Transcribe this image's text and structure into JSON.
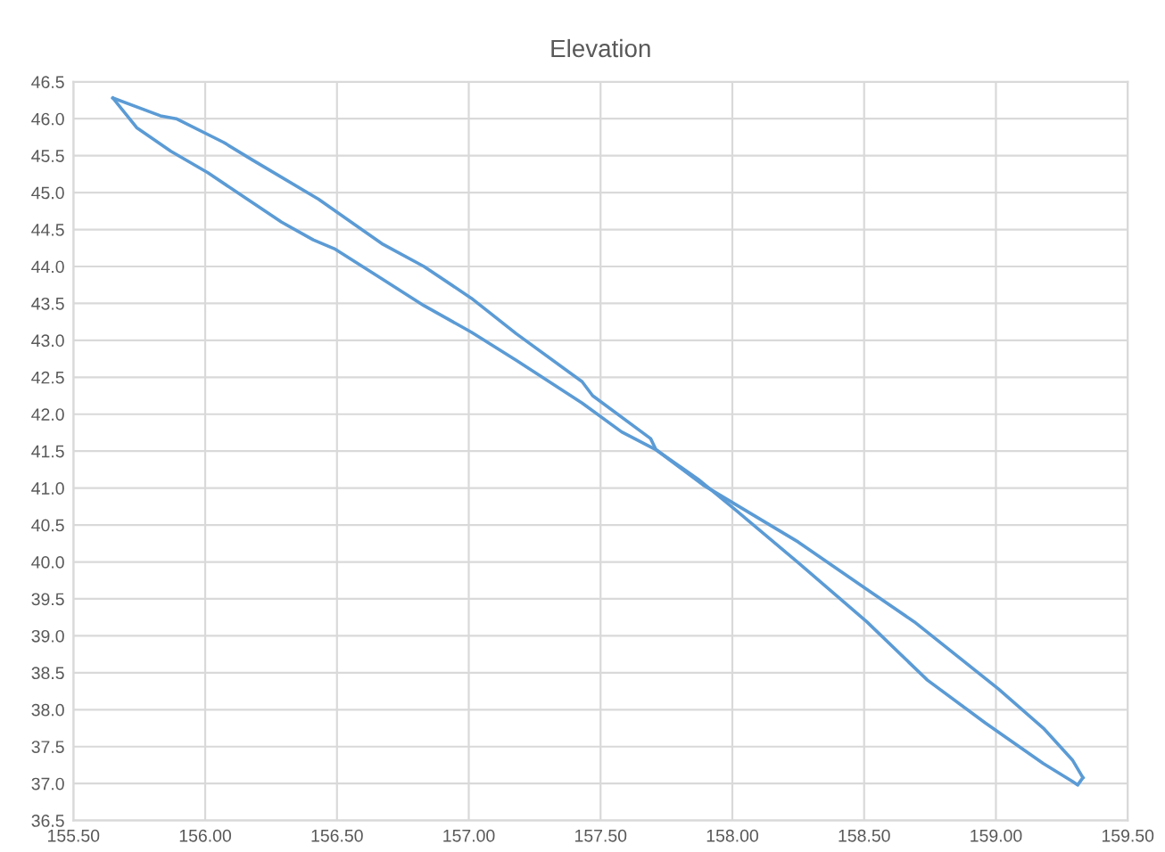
{
  "chart_data": {
    "type": "line",
    "title": "Elevation",
    "grid": true,
    "marker": "none",
    "line_style": "solid",
    "xlim": [
      155.5,
      159.5
    ],
    "ylim": [
      36.5,
      46.5
    ],
    "xticks": [
      {
        "value": 155.5,
        "label": "155.50"
      },
      {
        "value": 156.0,
        "label": "156.00"
      },
      {
        "value": 156.5,
        "label": "156.50"
      },
      {
        "value": 157.0,
        "label": "157.00"
      },
      {
        "value": 157.5,
        "label": "157.50"
      },
      {
        "value": 158.0,
        "label": "158.00"
      },
      {
        "value": 158.5,
        "label": "158.50"
      },
      {
        "value": 159.0,
        "label": "159.00"
      },
      {
        "value": 159.5,
        "label": "159.50"
      }
    ],
    "yticks": [
      {
        "value": 36.5,
        "label": "36.5"
      },
      {
        "value": 37.0,
        "label": "37.0"
      },
      {
        "value": 37.5,
        "label": "37.5"
      },
      {
        "value": 38.0,
        "label": "38.0"
      },
      {
        "value": 38.5,
        "label": "38.5"
      },
      {
        "value": 39.0,
        "label": "39.0"
      },
      {
        "value": 39.5,
        "label": "39.5"
      },
      {
        "value": 40.0,
        "label": "40.0"
      },
      {
        "value": 40.5,
        "label": "40.5"
      },
      {
        "value": 41.0,
        "label": "41.0"
      },
      {
        "value": 41.5,
        "label": "41.5"
      },
      {
        "value": 42.0,
        "label": "42.0"
      },
      {
        "value": 42.5,
        "label": "42.5"
      },
      {
        "value": 43.0,
        "label": "43.0"
      },
      {
        "value": 43.5,
        "label": "43.5"
      },
      {
        "value": 44.0,
        "label": "44.0"
      },
      {
        "value": 44.5,
        "label": "44.5"
      },
      {
        "value": 45.0,
        "label": "45.0"
      },
      {
        "value": 45.5,
        "label": "45.5"
      },
      {
        "value": 46.0,
        "label": "46.0"
      },
      {
        "value": 46.5,
        "label": "46.5"
      }
    ],
    "series": [
      {
        "color": "#5b9bd5",
        "x": [
          155.65,
          155.83,
          155.89,
          156.07,
          156.18,
          156.43,
          156.67,
          156.83,
          157.01,
          157.18,
          157.43,
          157.47,
          157.69,
          157.71,
          157.87,
          158.01,
          158.25,
          158.51,
          158.74,
          158.96,
          159.18,
          159.29,
          159.31,
          159.33
        ],
        "values": [
          46.28,
          46.04,
          46.0,
          45.68,
          45.44,
          44.91,
          44.31,
          44.0,
          43.57,
          43.09,
          42.44,
          42.25,
          41.67,
          41.52,
          41.12,
          40.71,
          39.99,
          39.19,
          38.4,
          37.82,
          37.27,
          37.03,
          36.98,
          37.08
        ]
      },
      {
        "color": "#5b9bd5",
        "x": [
          155.65,
          155.74,
          155.87,
          156.01,
          156.16,
          156.29,
          156.41,
          156.49,
          156.65,
          156.83,
          157.01,
          157.18,
          157.43,
          157.58,
          157.71,
          157.89,
          158.25,
          158.51,
          158.69,
          159.01,
          159.18,
          159.29,
          159.33
        ],
        "values": [
          46.28,
          45.88,
          45.56,
          45.27,
          44.91,
          44.6,
          44.36,
          44.24,
          43.88,
          43.47,
          43.11,
          42.73,
          42.15,
          41.76,
          41.52,
          41.04,
          40.27,
          39.63,
          39.19,
          38.28,
          37.75,
          37.32,
          37.08
        ]
      }
    ]
  }
}
